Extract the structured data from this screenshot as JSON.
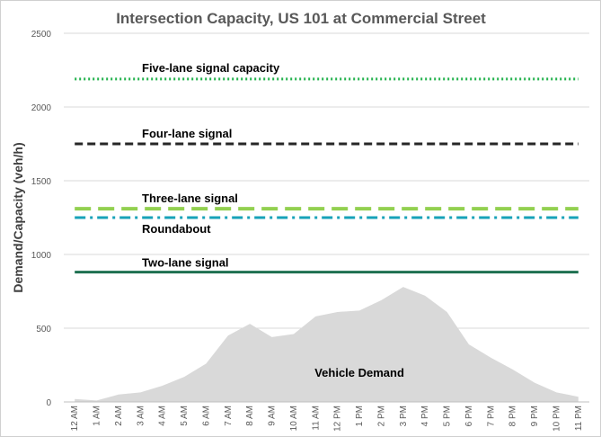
{
  "chart_data": {
    "type": "area",
    "title": "Intersection Capacity, US 101 at Commercial Street",
    "xlabel": "",
    "ylabel": "Demand/Capacity (veh/h)",
    "ylim": [
      0,
      2500
    ],
    "yticks": [
      "0",
      "500",
      "1000",
      "1500",
      "2000",
      "2500"
    ],
    "grid": true,
    "categories": [
      "12 AM",
      "1 AM",
      "2 AM",
      "3 AM",
      "4 AM",
      "5 AM",
      "6 AM",
      "7 AM",
      "8 AM",
      "9 AM",
      "10 AM",
      "11 AM",
      "12 PM",
      "1 PM",
      "2 PM",
      "3 PM",
      "4 PM",
      "5 PM",
      "6 PM",
      "7 PM",
      "8 PM",
      "9 PM",
      "10 PM",
      "11 PM"
    ],
    "demand": {
      "name": "Vehicle Demand",
      "color": "#d9d9d9",
      "values": [
        20,
        10,
        50,
        65,
        110,
        170,
        260,
        450,
        530,
        440,
        460,
        580,
        610,
        620,
        690,
        780,
        720,
        610,
        390,
        300,
        220,
        130,
        65,
        35
      ]
    },
    "capacity_lines": [
      {
        "name": "Five-lane signal capacity",
        "value": 2190,
        "color": "#22b14c",
        "style": "dotted"
      },
      {
        "name": "Four-lane signal",
        "value": 1750,
        "color": "#262626",
        "style": "dashed"
      },
      {
        "name": "Three-lane signal",
        "value": 1310,
        "color": "#92d050",
        "style": "longdash"
      },
      {
        "name": "Roundabout",
        "value": 1250,
        "color": "#17a2b8",
        "style": "dashdot"
      },
      {
        "name": "Two-lane signal",
        "value": 880,
        "color": "#1e7050",
        "style": "solid"
      }
    ]
  }
}
